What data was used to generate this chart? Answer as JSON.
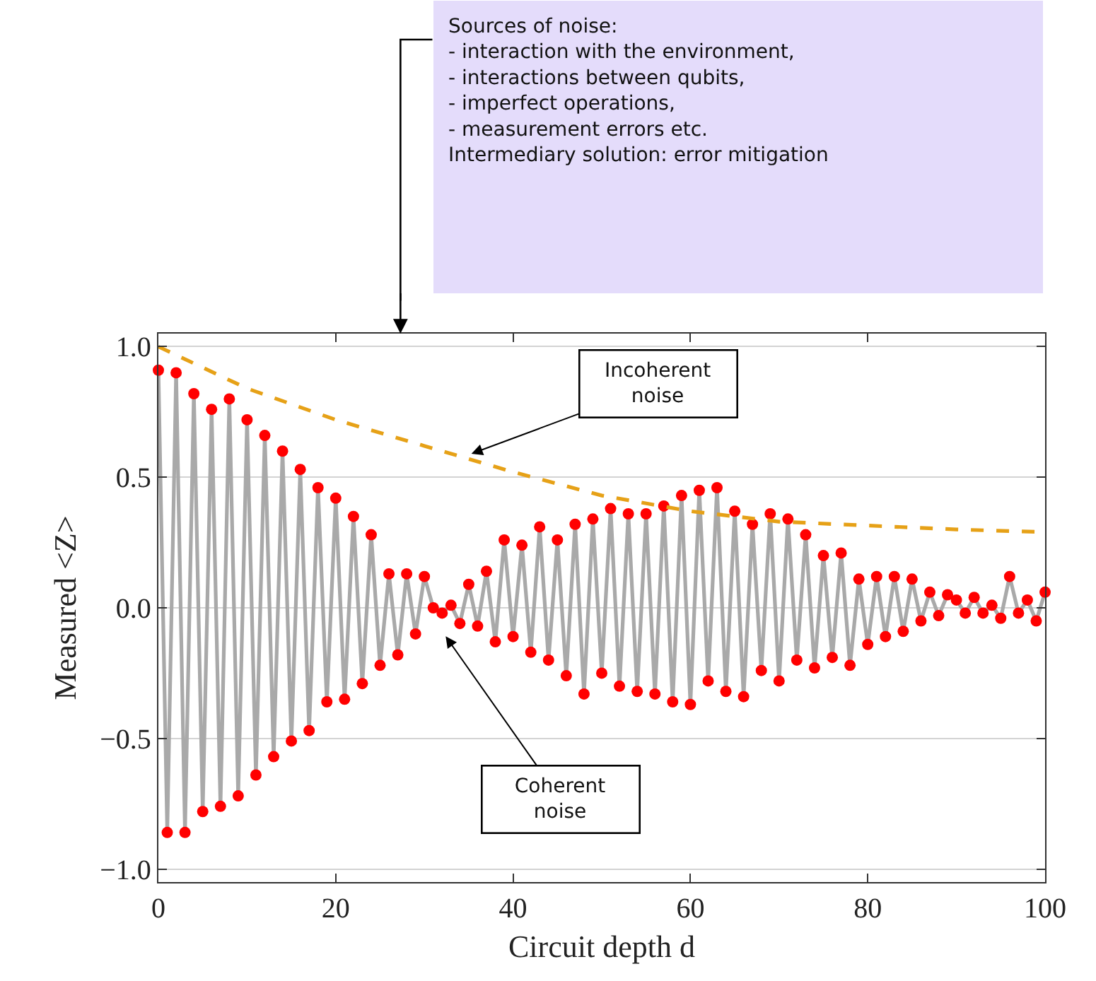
{
  "chart_data": {
    "type": "line",
    "xlabel": "Circuit depth d",
    "ylabel": "Measured <Z>",
    "xlim": [
      0,
      100
    ],
    "xticks": [
      0,
      20,
      40,
      60,
      80,
      100
    ],
    "ylim": [
      -1.05,
      1.05
    ],
    "yticks": [
      {
        "value": -1,
        "label": "−1.0"
      },
      {
        "value": -0.5,
        "label": "−0.5"
      },
      {
        "value": 0,
        "label": "0.0"
      },
      {
        "value": 0.5,
        "label": "0.5"
      },
      {
        "value": 1,
        "label": "1.0"
      }
    ],
    "grid": "y",
    "x": [
      0,
      1,
      2,
      3,
      4,
      5,
      6,
      7,
      8,
      9,
      10,
      11,
      12,
      13,
      14,
      15,
      16,
      17,
      18,
      19,
      20,
      21,
      22,
      23,
      24,
      25,
      26,
      27,
      28,
      29,
      30,
      31,
      32,
      33,
      34,
      35,
      36,
      37,
      38,
      39,
      40,
      41,
      42,
      43,
      44,
      45,
      46,
      47,
      48,
      49,
      50,
      51,
      52,
      53,
      54,
      55,
      56,
      57,
      58,
      59,
      60,
      61,
      62,
      63,
      64,
      65,
      66,
      67,
      68,
      69,
      70,
      71,
      72,
      73,
      74,
      75,
      76,
      77,
      78,
      79,
      80,
      81,
      82,
      83,
      84,
      85,
      86,
      87,
      88,
      89,
      90,
      91,
      92,
      93,
      94,
      95,
      96,
      97,
      98,
      99,
      100
    ],
    "series": [
      {
        "color": "#a9a9a9",
        "marker": "none",
        "line_style": "solid",
        "values": [
          0.91,
          -0.86,
          0.9,
          -0.86,
          0.82,
          -0.78,
          0.76,
          -0.76,
          0.8,
          -0.72,
          0.72,
          -0.64,
          0.66,
          -0.57,
          0.6,
          -0.51,
          0.53,
          -0.47,
          0.46,
          -0.36,
          0.42,
          -0.35,
          0.35,
          -0.29,
          0.28,
          -0.22,
          0.13,
          -0.18,
          0.13,
          -0.1,
          0.12,
          0.0,
          -0.02,
          0.01,
          -0.06,
          0.09,
          -0.07,
          0.14,
          -0.13,
          0.26,
          -0.11,
          0.24,
          -0.17,
          0.31,
          -0.2,
          0.26,
          -0.26,
          0.32,
          -0.33,
          0.34,
          -0.25,
          0.38,
          -0.3,
          0.36,
          -0.32,
          0.36,
          -0.33,
          0.39,
          -0.36,
          0.43,
          -0.37,
          0.45,
          -0.28,
          0.46,
          -0.32,
          0.37,
          -0.34,
          0.32,
          -0.24,
          0.36,
          -0.28,
          0.34,
          -0.2,
          0.28,
          -0.23,
          0.2,
          -0.19,
          0.21,
          -0.22,
          0.11,
          -0.14,
          0.12,
          -0.11,
          0.12,
          -0.09,
          0.11,
          -0.05,
          0.06,
          -0.03,
          0.05,
          0.03,
          -0.02,
          0.04,
          -0.02,
          0.01,
          -0.04,
          0.12,
          -0.02,
          0.03,
          -0.05,
          0.06
        ]
      },
      {
        "type": "scatter",
        "color": "#ff0000",
        "marker": "circle",
        "values": [
          0.91,
          -0.86,
          0.9,
          -0.86,
          0.82,
          -0.78,
          0.76,
          -0.76,
          0.8,
          -0.72,
          0.72,
          -0.64,
          0.66,
          -0.57,
          0.6,
          -0.51,
          0.53,
          -0.47,
          0.46,
          -0.36,
          0.42,
          -0.35,
          0.35,
          -0.29,
          0.28,
          -0.22,
          0.13,
          -0.18,
          0.13,
          -0.1,
          0.12,
          0.0,
          -0.02,
          0.01,
          -0.06,
          0.09,
          -0.07,
          0.14,
          -0.13,
          0.26,
          -0.11,
          0.24,
          -0.17,
          0.31,
          -0.2,
          0.26,
          -0.26,
          0.32,
          -0.33,
          0.34,
          -0.25,
          0.38,
          -0.3,
          0.36,
          -0.32,
          0.36,
          -0.33,
          0.39,
          -0.36,
          0.43,
          -0.37,
          0.45,
          -0.28,
          0.46,
          -0.32,
          0.37,
          -0.34,
          0.32,
          -0.24,
          0.36,
          -0.28,
          0.34,
          -0.2,
          0.28,
          -0.23,
          0.2,
          -0.19,
          0.21,
          -0.22,
          0.11,
          -0.14,
          0.12,
          -0.11,
          0.12,
          -0.09,
          0.11,
          -0.05,
          0.06,
          -0.03,
          0.05,
          0.03,
          -0.02,
          0.04,
          -0.02,
          0.01,
          -0.04,
          0.12,
          -0.02,
          0.03,
          -0.05,
          0.06
        ]
      },
      {
        "color": "#e6a117",
        "marker": "none",
        "line_style": "dashed",
        "x": [
          0,
          10,
          20,
          30,
          40,
          50,
          60,
          70,
          80,
          90,
          100
        ],
        "values": [
          1.0,
          0.84,
          0.72,
          0.62,
          0.52,
          0.43,
          0.37,
          0.33,
          0.315,
          0.3,
          0.29
        ]
      }
    ],
    "annotations": [
      "Incoherent\nnoise",
      "Coherent\nnoise",
      "Sources of noise:\n- interaction with the environment,\n- interactions between qubits,\n- imperfect operations,\n- measurement errors etc.\nIntermediary solution: error mitigation"
    ]
  }
}
